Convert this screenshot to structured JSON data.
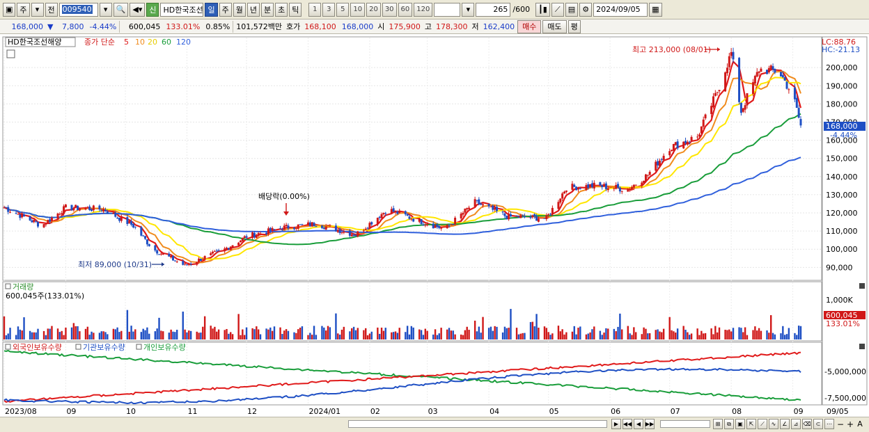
{
  "toolbar": {
    "period_buttons": [
      "주",
      "전"
    ],
    "code": "009540",
    "sin_label": "신",
    "stock_name": "HD한국조선",
    "tabs": [
      "일",
      "주",
      "월",
      "년",
      "분",
      "초",
      "틱"
    ],
    "active_tab": "일",
    "numbers": [
      "1",
      "3",
      "5",
      "10",
      "20",
      "30",
      "60",
      "120"
    ],
    "count": "265",
    "count_max": "/600",
    "date": "2024/09/05"
  },
  "quote": {
    "price": "168,000",
    "arrow": "▼",
    "change": "7,800",
    "change_pct": "-4.44%",
    "volume": "600,045",
    "volume_ratio": "133.01%",
    "turnover": "0.85%",
    "value": "101,572백만",
    "bid_label": "호가",
    "bid": "168,100",
    "ask": "168,000",
    "open_label": "시",
    "open": "175,900",
    "high_label": "고",
    "high": "178,300",
    "low_label": "저",
    "low": "162,400",
    "buy_label": "매수",
    "sell_label": "매도",
    "avg_label": "평"
  },
  "price_panel": {
    "legend_name": "HD한국조선해양",
    "legend_ma_label": "종가 단순",
    "ma_periods": [
      "5",
      "10",
      "20",
      "60",
      "120"
    ],
    "lc": "LC:88.76",
    "hc": "HC:-21.13",
    "current_price": "168,000",
    "current_pct": "-4.44%",
    "max_annotation": "최고 213,000 (08/01)",
    "min_annotation": "최저 89,000 (10/31)",
    "dividend_annotation": "배당락(0.00%)"
  },
  "volume_panel": {
    "title": "거래량",
    "value": "600,045주(133.01%)",
    "tick": "1,000K",
    "current": "600,045",
    "current_pct": "133.01%"
  },
  "holdings_panel": {
    "legend": [
      "외국인보유수량",
      "기관보유수량",
      "개인보유수량"
    ],
    "ticks": [
      "-5,000,000",
      "-7,500,000"
    ]
  },
  "colors": {
    "up": "#d01818",
    "down": "#1e4fc4",
    "ma5": "#e01a1a",
    "ma10": "#f08c1e",
    "ma20": "#ffe600",
    "ma60": "#199d3a",
    "ma120": "#2f5fdc"
  },
  "chart_data": {
    "type": "line",
    "x_ticks": [
      "2023/08",
      "09",
      "10",
      "11",
      "12",
      "2024/01",
      "02",
      "03",
      "04",
      "05",
      "06",
      "07",
      "08",
      "09",
      "09/05"
    ],
    "y_ticks": [
      90000,
      100000,
      110000,
      120000,
      130000,
      140000,
      150000,
      160000,
      170000,
      180000,
      190000,
      200000
    ],
    "ylim": [
      84000,
      215000
    ],
    "close_anchors": [
      {
        "date": "2023/08/01",
        "close": 123000
      },
      {
        "date": "2023/08/20",
        "close": 113000
      },
      {
        "date": "2023/09/01",
        "close": 123000
      },
      {
        "date": "2023/09/20",
        "close": 122000
      },
      {
        "date": "2023/10/05",
        "close": 113000
      },
      {
        "date": "2023/10/15",
        "close": 100000
      },
      {
        "date": "2023/10/31",
        "close": 91000
      },
      {
        "date": "2023/11/20",
        "close": 100000
      },
      {
        "date": "2023/12/01",
        "close": 107000
      },
      {
        "date": "2023/12/20",
        "close": 112000
      },
      {
        "date": "2024/01/05",
        "close": 114000
      },
      {
        "date": "2024/01/25",
        "close": 108000
      },
      {
        "date": "2024/02/10",
        "close": 122000
      },
      {
        "date": "2024/02/25",
        "close": 116000
      },
      {
        "date": "2024/03/10",
        "close": 111000
      },
      {
        "date": "2024/03/25",
        "close": 126000
      },
      {
        "date": "2024/04/10",
        "close": 118000
      },
      {
        "date": "2024/04/30",
        "close": 117000
      },
      {
        "date": "2024/05/10",
        "close": 134000
      },
      {
        "date": "2024/05/25",
        "close": 135000
      },
      {
        "date": "2024/06/10",
        "close": 133000
      },
      {
        "date": "2024/06/20",
        "close": 141000
      },
      {
        "date": "2024/07/01",
        "close": 156000
      },
      {
        "date": "2024/07/15",
        "close": 162000
      },
      {
        "date": "2024/07/25",
        "close": 187000
      },
      {
        "date": "2024/08/01",
        "close": 208000
      },
      {
        "date": "2024/08/06",
        "close": 176000
      },
      {
        "date": "2024/08/15",
        "close": 199000
      },
      {
        "date": "2024/08/25",
        "close": 198000
      },
      {
        "date": "2024/09/01",
        "close": 185000
      },
      {
        "date": "2024/09/05",
        "close": 168000
      }
    ],
    "ma_periods": [
      5,
      10,
      20,
      60,
      120
    ]
  }
}
